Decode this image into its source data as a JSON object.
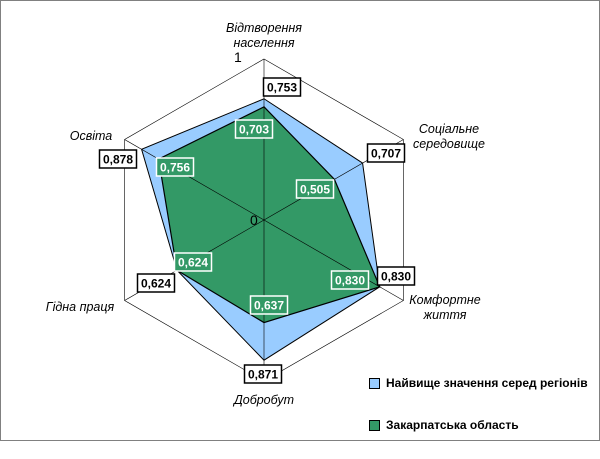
{
  "chart_data": {
    "type": "radar",
    "axes": [
      "Відтворення населення",
      "Соціальне середовище",
      "Комфортне життя",
      "Добробут",
      "Гідна праця",
      "Освіта"
    ],
    "axis_label_lines": [
      [
        "Відтворення",
        "населення"
      ],
      [
        "Соціальне",
        "середовище"
      ],
      [
        "Комфортне",
        "життя"
      ],
      [
        "Добробут"
      ],
      [
        "Гідна праця"
      ],
      [
        "Освіта"
      ]
    ],
    "range": [
      0,
      1
    ],
    "scale_labels": [
      "0",
      "1"
    ],
    "series": [
      {
        "name": "Найвище значення серед регіонів",
        "values": [
          0.753,
          0.707,
          0.83,
          0.871,
          0.624,
          0.878
        ],
        "value_labels": [
          "0,753",
          "0,707",
          "0,830",
          "0,871",
          "0,624",
          "0,878"
        ],
        "color": "#99ccff"
      },
      {
        "name": "Закарпатська область",
        "values": [
          0.703,
          0.505,
          0.83,
          0.637,
          0.624,
          0.756
        ],
        "value_labels": [
          "0,703",
          "0,505",
          "0,830",
          "0,637",
          "0,624",
          "0,756"
        ],
        "color": "#339966"
      }
    ],
    "grid": true,
    "legend_position": "bottom-right"
  }
}
